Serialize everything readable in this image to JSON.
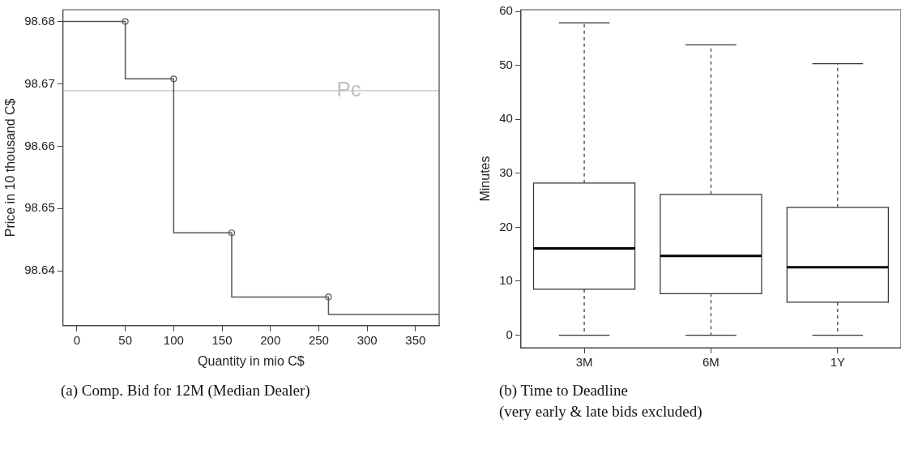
{
  "chart_data": [
    {
      "type": "step",
      "xlabel": "Quantity in mio C$",
      "ylabel": "Price in 10 thousand C$",
      "xlim": [
        -14.4,
        374.4
      ],
      "xticks": [
        0,
        50,
        100,
        150,
        200,
        250,
        300,
        350
      ],
      "ylim": [
        98.6312,
        98.6819
      ],
      "yticks": [
        98.64,
        98.65,
        98.66,
        98.67,
        98.68
      ],
      "series": [
        {
          "type": "step",
          "color": "#555555",
          "marker": "none",
          "x": [
            -14.4,
            50,
            100,
            160,
            260,
            374.4
          ],
          "values": [
            98.68,
            98.68,
            98.6708,
            98.6461,
            98.6358,
            98.633
          ]
        },
        {
          "type": "scatter",
          "color": "#555555",
          "marker": "circle",
          "x": [
            50,
            100,
            160,
            260
          ],
          "values": [
            98.68,
            98.6708,
            98.6461,
            98.6358
          ]
        }
      ],
      "ref_lines": [
        {
          "axis": "y",
          "value": 98.6689,
          "label": "Pc",
          "color": "#c0c0c0"
        }
      ],
      "annotations": [
        "(a) Comp. Bid for 12M (Median Dealer)"
      ]
    },
    {
      "type": "box",
      "ylabel": "Minutes",
      "categories": [
        "3M",
        "6M",
        "1Y"
      ],
      "ylim": [
        -2.32,
        60.32
      ],
      "yticks": [
        0,
        10,
        20,
        30,
        40,
        50,
        60
      ],
      "boxes": [
        {
          "low": 0,
          "q1": 8.5,
          "median": 16.1,
          "q3": 28.2,
          "high": 57.9
        },
        {
          "low": 0,
          "q1": 7.7,
          "median": 14.7,
          "q3": 26.1,
          "high": 53.8
        },
        {
          "low": 0,
          "q1": 6.1,
          "median": 12.6,
          "q3": 23.7,
          "high": 50.3
        }
      ],
      "annotations": [
        "(b) Time to Deadline",
        "(very early & late bids excluded)"
      ]
    }
  ]
}
